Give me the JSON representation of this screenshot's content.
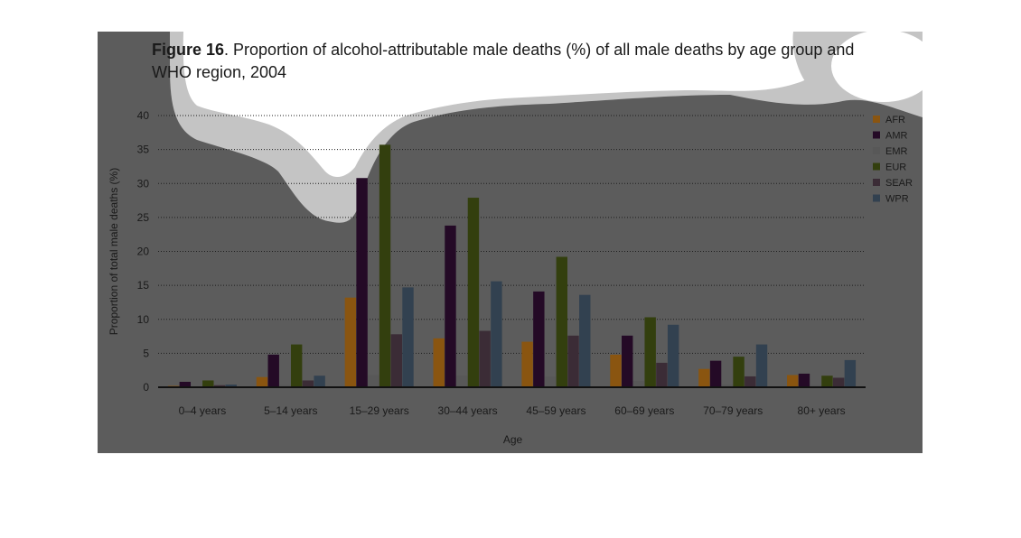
{
  "figure": {
    "title_lead": "Figure 16",
    "title_rest": ". Proportion of alcohol-attributable male deaths (%) of all male deaths by age group and WHO region, 2004"
  },
  "colors": {
    "panel": "#5c5c5c",
    "blob": "#c4c4c4",
    "blob_light": "#ffffff",
    "series": [
      "#8a5510",
      "#240a26",
      "#585858",
      "#333f0e",
      "#3b2c36",
      "#324150"
    ]
  },
  "chart_data": {
    "type": "bar",
    "title": "Figure 16. Proportion of alcohol-attributable male deaths (%) of all male deaths by age group and WHO region, 2004",
    "xlabel": "Age",
    "ylabel": "Proportion of total male deaths (%)",
    "ylim": [
      0,
      40
    ],
    "yticks": [
      0,
      5,
      10,
      15,
      20,
      25,
      30,
      35,
      40
    ],
    "grid": true,
    "legend_position": "right",
    "categories": [
      "0–4 years",
      "5–14 years",
      "15–29 years",
      "30–44 years",
      "45–59 years",
      "60–69 years",
      "70–79 years",
      "80+ years"
    ],
    "series": [
      {
        "name": "AFR",
        "values": [
          0.2,
          1.5,
          13.2,
          7.2,
          6.7,
          4.8,
          2.7,
          1.8
        ]
      },
      {
        "name": "AMR",
        "values": [
          0.8,
          4.8,
          30.8,
          23.8,
          14.1,
          7.6,
          3.9,
          2.0
        ]
      },
      {
        "name": "EMR",
        "values": [
          0.1,
          0.3,
          1.8,
          1.7,
          1.6,
          0.9,
          0.4,
          0.3
        ]
      },
      {
        "name": "EUR",
        "values": [
          1.0,
          6.3,
          35.7,
          27.9,
          19.2,
          10.3,
          4.5,
          1.7
        ]
      },
      {
        "name": "SEAR",
        "values": [
          0.3,
          1.0,
          7.8,
          8.3,
          7.6,
          3.6,
          1.6,
          1.4
        ]
      },
      {
        "name": "WPR",
        "values": [
          0.4,
          1.7,
          14.7,
          15.6,
          13.6,
          9.2,
          6.3,
          4.0
        ]
      }
    ]
  }
}
